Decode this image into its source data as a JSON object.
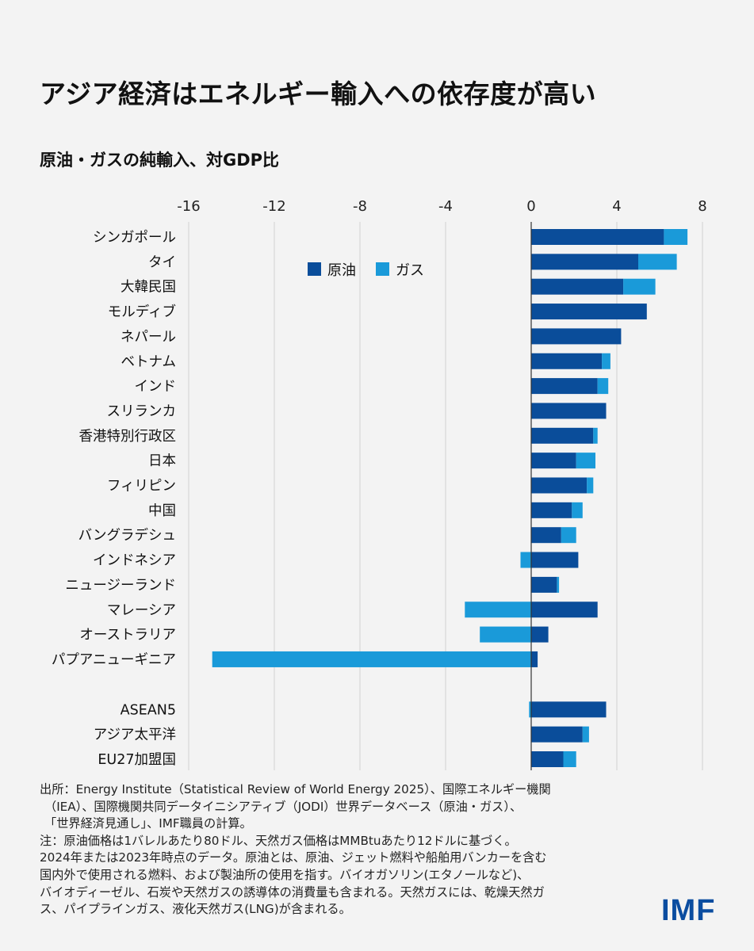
{
  "title": "アジア経済はエネルギー輸入への依存度が高い",
  "subtitle": "原油・ガスの純輸入、対GDP比",
  "colors": {
    "oil": "#0a4d9a",
    "gas": "#1a9ad9",
    "grid": "#d0d0d0",
    "zero": "#333333"
  },
  "chart_data": {
    "type": "bar",
    "orientation": "horizontal",
    "stacked": true,
    "xlim": [
      -16,
      8
    ],
    "ticks": [
      -16,
      -12,
      -8,
      -4,
      0,
      4,
      8
    ],
    "tick_labels": [
      "-16",
      "-12",
      "-8",
      "-4",
      "0",
      "4",
      "8"
    ],
    "legend_position": "top-center",
    "categories": [
      "シンガポール",
      "タイ",
      "大韓民国",
      "モルディブ",
      "ネパール",
      "ベトナム",
      "インド",
      "スリランカ",
      "香港特別行政区",
      "日本",
      "フィリピン",
      "中国",
      "バングラデシュ",
      "インドネシア",
      "ニュージーランド",
      "マレーシア",
      "オーストラリア",
      "パプアニューギニア",
      "ASEAN5",
      "アジア太平洋",
      "EU27加盟国"
    ],
    "series": [
      {
        "name": "原油",
        "values": [
          6.2,
          5.0,
          4.3,
          5.4,
          4.2,
          3.3,
          3.1,
          3.5,
          2.9,
          2.1,
          2.6,
          1.9,
          1.4,
          2.2,
          1.2,
          3.1,
          0.8,
          0.3,
          3.5,
          2.4,
          1.5
        ]
      },
      {
        "name": "ガス",
        "values": [
          1.1,
          1.8,
          1.5,
          0.0,
          0.0,
          0.4,
          0.5,
          0.0,
          0.2,
          0.9,
          0.3,
          0.5,
          0.7,
          -0.5,
          0.1,
          -3.1,
          -2.4,
          -14.9,
          -0.1,
          0.3,
          0.6
        ]
      }
    ]
  },
  "notes": {
    "line1": "出所：Energy Institute（Statistical Review of World Energy 2025）、国際エネルギー機関",
    "line2": "（IEA）、国際機関共同データイニシアティブ（JODI）世界データベース（原油・ガス）、",
    "line3": "「世界経済見通し」、IMF職員の計算。",
    "line4": "注：原油価格は1バレルあたり80ドル、天然ガス価格はMMBtuあたり12ドルに基づく。",
    "line5": "2024年または2023年時点のデータ。原油とは、原油、ジェット燃料や船舶用バンカーを含む",
    "line6": "国内外で使用される燃料、および製油所の使用を指す。バイオガソリン(エタノールなど)、",
    "line7": "バイオディーゼル、石炭や天然ガスの誘導体の消費量も含まれる。天然ガスには、乾燥天然ガ",
    "line8": "ス、パイプラインガス、液化天然ガス(LNG)が含まれる。"
  },
  "logo": "IMF"
}
